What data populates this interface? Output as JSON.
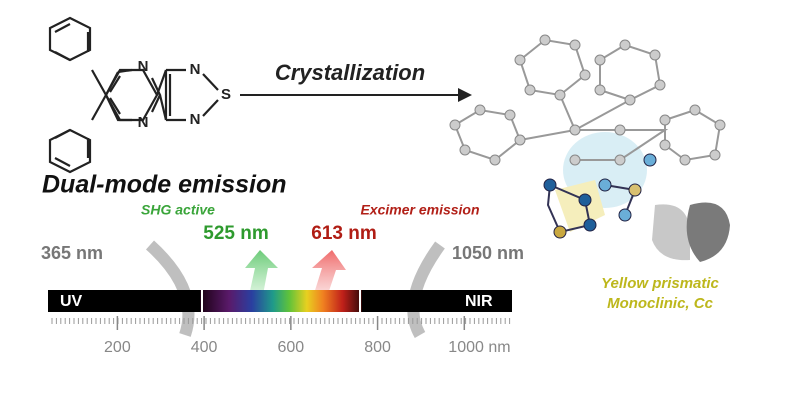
{
  "molecule": {
    "atoms": [
      "N",
      "N",
      "N",
      "S",
      "N"
    ]
  },
  "arrow_label": "Crystallization",
  "heading": "Dual-mode emission",
  "shg": {
    "label": "SHG active",
    "wavelength": "525 nm"
  },
  "excimer": {
    "label": "Excimer emission",
    "wavelength": "613 nm"
  },
  "excitation": "365 nm",
  "emission_limit": "1050 nm",
  "spectrum": {
    "regions": [
      "UV",
      "NIR"
    ],
    "xlim": [
      40,
      1110
    ],
    "ticks": [
      200,
      400,
      600,
      800,
      {
        "value": 1000,
        "label": "1000 nm"
      }
    ]
  },
  "crystal": {
    "habit": "Yellow prismatic",
    "system": "Monoclinic, Cc"
  }
}
